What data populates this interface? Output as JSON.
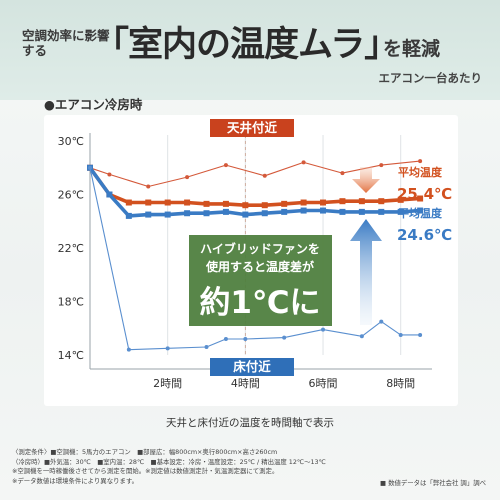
{
  "header": {
    "prefix": "空調効率に影響する",
    "main": "「室内の温度ムラ」",
    "suffix": "を軽減",
    "sub": "エアコン一台あたり"
  },
  "section_title": "●エアコン冷房時",
  "labels": {
    "ceiling": "天井付近",
    "floor": "床付近",
    "avg_top_title": "平均温度",
    "avg_top_value": "25.4℃",
    "avg_bottom_title": "平均温度",
    "avg_bottom_value": "24.6℃",
    "callout_line1": "ハイブリッドファンを",
    "callout_line2": "使用すると温度差が",
    "callout_big": "約1℃に"
  },
  "caption": "天井と床付近の温度を時間軸で表示",
  "footnotes": [
    "〈測定条件〉■空調機：5馬力のエアコン　■部屋広：幅800cm×奥行800cm×高さ260cm",
    "（冷房時）■外気温：30℃　■室内温：28℃　■基本設定：冷房・温度設定：25℃ / 精出温度 12℃〜13℃",
    "※空調機を一時稼働後させてから測定を開始。※測定値は数値測定計・気温測定器にて測定。",
    "※データ数値は環境条件により異なります。"
  ],
  "credit": "■ 数値データは「弊社会社 調」調べ",
  "colors": {
    "orange_thin": "#d4593a",
    "orange_thick": "#d2511f",
    "blue_thin": "#5a8fcf",
    "blue_thick": "#3a7bc4",
    "ceiling_label_bg": "#c9421e",
    "floor_label_bg": "#2f6fb8",
    "callout_bg": "#4f7f3f"
  },
  "chart_data": {
    "type": "line",
    "title": "",
    "xlabel": "",
    "ylabel": "",
    "x": [
      0,
      0.5,
      1.0,
      1.5,
      2.0,
      2.5,
      3.0,
      3.5,
      4.0,
      4.5,
      5.0,
      5.5,
      6.0,
      6.5,
      7.0,
      7.5,
      8.0
    ],
    "x_ticks": [
      "2時間",
      "4時間",
      "6時間",
      "8時間"
    ],
    "x_tick_values": [
      2,
      4,
      6,
      8
    ],
    "y_ticks": [
      "30℃",
      "26℃",
      "22℃",
      "18℃",
      "14℃"
    ],
    "y_tick_values": [
      30,
      26,
      22,
      18,
      14
    ],
    "ylim": [
      14,
      30
    ],
    "xlim": [
      0,
      8.6
    ],
    "grid": "vertical",
    "series": [
      {
        "name": "",
        "style": "thin",
        "color": "orange",
        "x": [
          0,
          0.5,
          1.5,
          2.5,
          3.5,
          4.5,
          5.5,
          6.5,
          7.5,
          8.5
        ],
        "values": [
          28.0,
          27.5,
          26.6,
          27.3,
          28.2,
          27.4,
          28.4,
          27.6,
          28.2,
          28.5
        ]
      },
      {
        "name": "",
        "style": "thick",
        "color": "orange",
        "x": [
          0,
          0.5,
          1.0,
          1.5,
          2.0,
          2.5,
          3.0,
          3.5,
          4.0,
          4.5,
          5.0,
          5.5,
          6.0,
          6.5,
          7.0,
          7.5,
          8.0,
          8.5
        ],
        "values": [
          28.0,
          26.0,
          25.4,
          25.4,
          25.4,
          25.4,
          25.3,
          25.3,
          25.2,
          25.2,
          25.3,
          25.4,
          25.4,
          25.5,
          25.5,
          25.5,
          25.6,
          25.7
        ]
      },
      {
        "name": "",
        "style": "thick",
        "color": "blue",
        "x": [
          0,
          0.5,
          1.0,
          1.5,
          2.0,
          2.5,
          3.0,
          3.5,
          4.0,
          4.5,
          5.0,
          5.5,
          6.0,
          6.5,
          7.0,
          7.5,
          8.0,
          8.5
        ],
        "values": [
          28.0,
          26.0,
          24.4,
          24.5,
          24.5,
          24.6,
          24.6,
          24.7,
          24.5,
          24.6,
          24.7,
          24.8,
          24.8,
          24.7,
          24.7,
          24.7,
          24.7,
          24.8
        ]
      },
      {
        "name": "",
        "style": "thin",
        "color": "blue",
        "x": [
          0,
          1.0,
          2.0,
          3.0,
          3.5,
          4.0,
          5.0,
          6.0,
          7.0,
          7.5,
          8.0,
          8.5
        ],
        "values": [
          28.0,
          14.4,
          14.5,
          14.6,
          15.2,
          15.2,
          15.3,
          15.9,
          15.4,
          16.5,
          15.5,
          15.5
        ]
      }
    ]
  }
}
